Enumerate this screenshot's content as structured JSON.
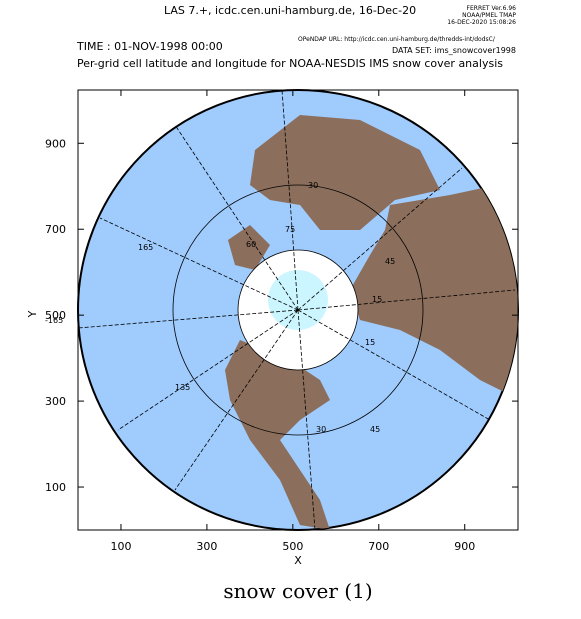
{
  "header": {
    "title": "LAS 7.+, icdc.cen.uni-hamburg.de, 16-Dec-20",
    "ferret": [
      "FERRET Ver.6.96",
      "NOAA/PMEL TMAP",
      "16-DEC-2020 15:08:26"
    ],
    "time": "TIME : 01-NOV-1998 00:00",
    "url": "OPeNDAP URL: http://icdc.cen.uni-hamburg.de/thredds-int/dodsC/",
    "dataset": "DATA SET: ims_snowcover1998",
    "subtitle": "Per-grid cell latitude and longitude for NOAA-NESDIS IMS snow cover analysis"
  },
  "chart_data": {
    "type": "map",
    "xlabel": "X",
    "ylabel": "Y",
    "xlim": [
      0,
      1024
    ],
    "ylim": [
      0,
      1024
    ],
    "xticks": [
      100,
      300,
      500,
      700,
      900
    ],
    "yticks": [
      100,
      300,
      500,
      700,
      900
    ],
    "graticule_labels": [
      "-165",
      "165",
      "135",
      "15",
      "45",
      "15",
      "30",
      "45",
      "30",
      "60",
      "75"
    ]
  },
  "caption": "snow cover (1)"
}
